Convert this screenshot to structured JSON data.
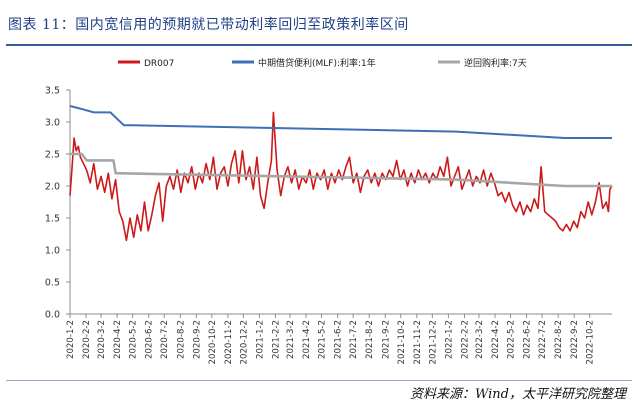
{
  "figure_title": "图表 11：国内宽信用的预期就已带动利率回归至政策利率区间",
  "source_note": "资料来源：Wind，太平洋研究院整理",
  "colors": {
    "dr007": "#cc1a1a",
    "mlf": "#3f6fb6",
    "reverse_repo": "#a6a6a6",
    "title": "#1f3f86"
  },
  "chart_data": {
    "type": "line",
    "ylim": [
      0,
      3.5
    ],
    "yticks": [
      "0.0",
      "0.5",
      "1.0",
      "1.5",
      "2.0",
      "2.5",
      "3.0",
      "3.5"
    ],
    "x_tick_labels": [
      "2020-1-2",
      "2020-2-2",
      "2020-3-2",
      "2020-4-2",
      "2020-5-2",
      "2020-6-2",
      "2020-7-2",
      "2020-8-2",
      "2020-9-2",
      "2020-10-2",
      "2020-11-2",
      "2020-12-2",
      "2021-1-2",
      "2021-2-2",
      "2021-3-2",
      "2021-4-2",
      "2021-5-2",
      "2021-6-2",
      "2021-7-2",
      "2021-8-2",
      "2021-9-2",
      "2021-10-2",
      "2021-11-2",
      "2021-12-2",
      "2022-1-2",
      "2022-2-2",
      "2022-3-2",
      "2022-4-2",
      "2022-5-2",
      "2022-6-2",
      "2022-7-2",
      "2022-8-2",
      "2022-9-2",
      "2022-10-2"
    ],
    "legend_position": "top",
    "grid": false,
    "series": [
      {
        "name": "DR007",
        "color": "#cc1a1a",
        "points": [
          [
            "2020-1-2",
            1.85
          ],
          [
            "2020-1-6",
            2.3
          ],
          [
            "2020-1-10",
            2.75
          ],
          [
            "2020-1-14",
            2.55
          ],
          [
            "2020-1-18",
            2.62
          ],
          [
            "2020-1-22",
            2.45
          ],
          [
            "2020-2-3",
            2.25
          ],
          [
            "2020-2-10",
            2.05
          ],
          [
            "2020-2-17",
            2.35
          ],
          [
            "2020-2-24",
            1.95
          ],
          [
            "2020-3-2",
            2.15
          ],
          [
            "2020-3-9",
            1.9
          ],
          [
            "2020-3-16",
            2.2
          ],
          [
            "2020-3-23",
            1.8
          ],
          [
            "2020-3-30",
            2.1
          ],
          [
            "2020-4-6",
            1.6
          ],
          [
            "2020-4-13",
            1.45
          ],
          [
            "2020-4-20",
            1.15
          ],
          [
            "2020-4-27",
            1.5
          ],
          [
            "2020-5-4",
            1.2
          ],
          [
            "2020-5-11",
            1.55
          ],
          [
            "2020-5-18",
            1.3
          ],
          [
            "2020-5-25",
            1.75
          ],
          [
            "2020-6-1",
            1.3
          ],
          [
            "2020-6-8",
            1.55
          ],
          [
            "2020-6-15",
            1.85
          ],
          [
            "2020-6-22",
            2.05
          ],
          [
            "2020-6-29",
            1.45
          ],
          [
            "2020-7-6",
            2.0
          ],
          [
            "2020-7-13",
            2.15
          ],
          [
            "2020-7-20",
            1.95
          ],
          [
            "2020-7-27",
            2.25
          ],
          [
            "2020-8-3",
            1.9
          ],
          [
            "2020-8-10",
            2.2
          ],
          [
            "2020-8-17",
            2.05
          ],
          [
            "2020-8-24",
            2.3
          ],
          [
            "2020-8-31",
            1.95
          ],
          [
            "2020-9-7",
            2.2
          ],
          [
            "2020-9-14",
            2.05
          ],
          [
            "2020-9-21",
            2.35
          ],
          [
            "2020-9-28",
            2.1
          ],
          [
            "2020-10-5",
            2.45
          ],
          [
            "2020-10-12",
            1.95
          ],
          [
            "2020-10-19",
            2.2
          ],
          [
            "2020-10-26",
            2.3
          ],
          [
            "2020-11-2",
            2.0
          ],
          [
            "2020-11-9",
            2.35
          ],
          [
            "2020-11-16",
            2.55
          ],
          [
            "2020-11-23",
            2.05
          ],
          [
            "2020-11-30",
            2.55
          ],
          [
            "2020-12-7",
            2.1
          ],
          [
            "2020-12-14",
            2.3
          ],
          [
            "2020-12-21",
            1.95
          ],
          [
            "2020-12-28",
            2.45
          ],
          [
            "2021-1-4",
            1.85
          ],
          [
            "2021-1-11",
            1.65
          ],
          [
            "2021-1-18",
            2.05
          ],
          [
            "2021-1-25",
            2.4
          ],
          [
            "2021-1-29",
            3.15
          ],
          [
            "2021-2-5",
            2.25
          ],
          [
            "2021-2-12",
            1.85
          ],
          [
            "2021-2-19",
            2.15
          ],
          [
            "2021-2-26",
            2.3
          ],
          [
            "2021-3-5",
            2.05
          ],
          [
            "2021-3-12",
            2.25
          ],
          [
            "2021-3-19",
            1.95
          ],
          [
            "2021-3-26",
            2.15
          ],
          [
            "2021-4-2",
            2.05
          ],
          [
            "2021-4-9",
            2.25
          ],
          [
            "2021-4-16",
            1.95
          ],
          [
            "2021-4-23",
            2.2
          ],
          [
            "2021-4-30",
            2.1
          ],
          [
            "2021-5-7",
            2.25
          ],
          [
            "2021-5-14",
            1.95
          ],
          [
            "2021-5-21",
            2.2
          ],
          [
            "2021-5-28",
            2.05
          ],
          [
            "2021-6-4",
            2.25
          ],
          [
            "2021-6-11",
            2.1
          ],
          [
            "2021-6-18",
            2.3
          ],
          [
            "2021-6-25",
            2.45
          ],
          [
            "2021-7-2",
            2.05
          ],
          [
            "2021-7-9",
            2.2
          ],
          [
            "2021-7-16",
            1.9
          ],
          [
            "2021-7-23",
            2.15
          ],
          [
            "2021-7-30",
            2.25
          ],
          [
            "2021-8-6",
            2.05
          ],
          [
            "2021-8-13",
            2.2
          ],
          [
            "2021-8-20",
            2.0
          ],
          [
            "2021-8-27",
            2.2
          ],
          [
            "2021-9-3",
            2.1
          ],
          [
            "2021-9-10",
            2.25
          ],
          [
            "2021-9-17",
            2.15
          ],
          [
            "2021-9-24",
            2.4
          ],
          [
            "2021-10-1",
            2.1
          ],
          [
            "2021-10-8",
            2.25
          ],
          [
            "2021-10-15",
            2.0
          ],
          [
            "2021-10-22",
            2.2
          ],
          [
            "2021-10-29",
            2.05
          ],
          [
            "2021-11-5",
            2.25
          ],
          [
            "2021-11-12",
            2.1
          ],
          [
            "2021-11-19",
            2.2
          ],
          [
            "2021-11-26",
            2.05
          ],
          [
            "2021-12-3",
            2.2
          ],
          [
            "2021-12-10",
            2.1
          ],
          [
            "2021-12-17",
            2.3
          ],
          [
            "2021-12-24",
            2.15
          ],
          [
            "2021-12-31",
            2.45
          ],
          [
            "2022-1-7",
            2.0
          ],
          [
            "2022-1-14",
            2.15
          ],
          [
            "2022-1-21",
            2.3
          ],
          [
            "2022-1-28",
            1.95
          ],
          [
            "2022-2-4",
            2.1
          ],
          [
            "2022-2-11",
            2.25
          ],
          [
            "2022-2-18",
            2.0
          ],
          [
            "2022-2-25",
            2.15
          ],
          [
            "2022-3-4",
            2.05
          ],
          [
            "2022-3-11",
            2.25
          ],
          [
            "2022-3-18",
            2.0
          ],
          [
            "2022-3-25",
            2.2
          ],
          [
            "2022-4-1",
            2.05
          ],
          [
            "2022-4-8",
            1.85
          ],
          [
            "2022-4-15",
            1.9
          ],
          [
            "2022-4-22",
            1.75
          ],
          [
            "2022-4-29",
            1.9
          ],
          [
            "2022-5-6",
            1.7
          ],
          [
            "2022-5-13",
            1.6
          ],
          [
            "2022-5-20",
            1.75
          ],
          [
            "2022-5-27",
            1.55
          ],
          [
            "2022-6-3",
            1.7
          ],
          [
            "2022-6-10",
            1.6
          ],
          [
            "2022-6-17",
            1.8
          ],
          [
            "2022-6-24",
            1.65
          ],
          [
            "2022-6-30",
            2.3
          ],
          [
            "2022-7-7",
            1.6
          ],
          [
            "2022-7-14",
            1.55
          ],
          [
            "2022-7-21",
            1.5
          ],
          [
            "2022-7-28",
            1.45
          ],
          [
            "2022-8-4",
            1.35
          ],
          [
            "2022-8-11",
            1.3
          ],
          [
            "2022-8-18",
            1.4
          ],
          [
            "2022-8-25",
            1.3
          ],
          [
            "2022-9-1",
            1.45
          ],
          [
            "2022-9-8",
            1.35
          ],
          [
            "2022-9-15",
            1.6
          ],
          [
            "2022-9-22",
            1.5
          ],
          [
            "2022-9-29",
            1.75
          ],
          [
            "2022-10-6",
            1.55
          ],
          [
            "2022-10-13",
            1.75
          ],
          [
            "2022-10-20",
            2.05
          ],
          [
            "2022-10-27",
            1.65
          ],
          [
            "2022-11-3",
            1.75
          ],
          [
            "2022-11-7",
            1.6
          ],
          [
            "2022-11-10",
            1.95
          ],
          [
            "2022-11-14",
            2.0
          ]
        ]
      },
      {
        "name": "中期借贷便利(MLF):利率:1年",
        "color": "#3f6fb6",
        "points": [
          [
            "2020-1-2",
            3.25
          ],
          [
            "2020-1-26",
            3.2
          ],
          [
            "2020-2-17",
            3.15
          ],
          [
            "2020-3-20",
            3.15
          ],
          [
            "2020-4-15",
            2.95
          ],
          [
            "2020-4-30",
            2.95
          ],
          [
            "2022-1-17",
            2.85
          ],
          [
            "2022-8-15",
            2.75
          ],
          [
            "2022-11-14",
            2.75
          ]
        ]
      },
      {
        "name": "逆回购利率:7天",
        "color": "#a6a6a6",
        "points": [
          [
            "2020-1-2",
            2.5
          ],
          [
            "2020-1-25",
            2.5
          ],
          [
            "2020-2-3",
            2.4
          ],
          [
            "2020-3-26",
            2.4
          ],
          [
            "2020-3-30",
            2.2
          ],
          [
            "2022-1-17",
            2.1
          ],
          [
            "2022-8-15",
            2.0
          ],
          [
            "2022-11-14",
            2.0
          ]
        ]
      }
    ]
  }
}
